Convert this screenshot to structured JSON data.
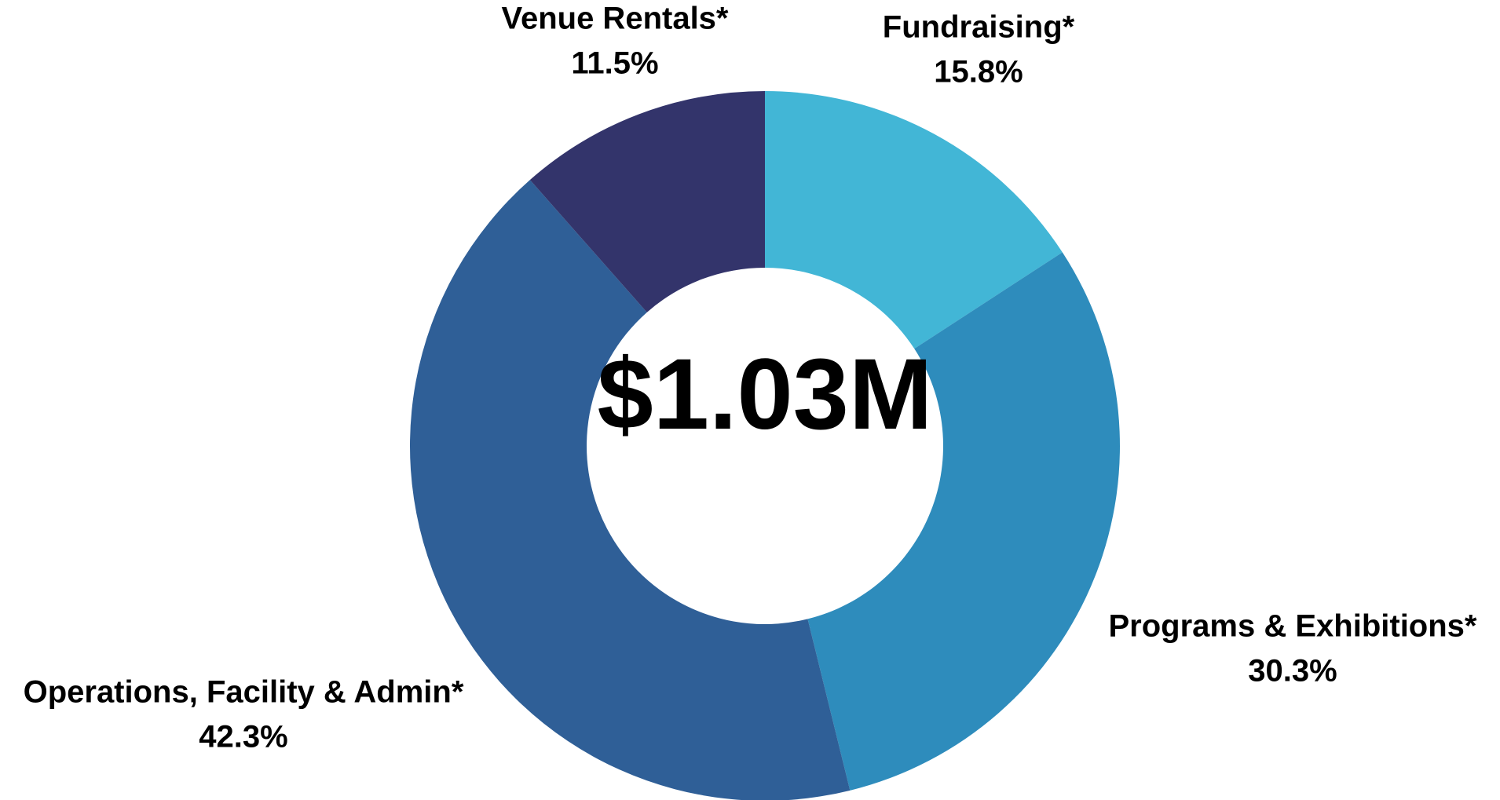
{
  "chart_data": {
    "type": "pie",
    "donut": true,
    "center_label": "$1.03M",
    "categories": [
      "Fundraising*",
      "Programs & Exhibitions*",
      "Operations, Facility & Admin*",
      "Venue Rentals*"
    ],
    "values": [
      15.8,
      30.3,
      42.3,
      11.5
    ],
    "value_labels": [
      "15.8%",
      "30.3%",
      "42.3%",
      "11.5%"
    ],
    "colors": [
      "#42b6d6",
      "#2e8cbc",
      "#2f5f97",
      "#33346b"
    ]
  }
}
